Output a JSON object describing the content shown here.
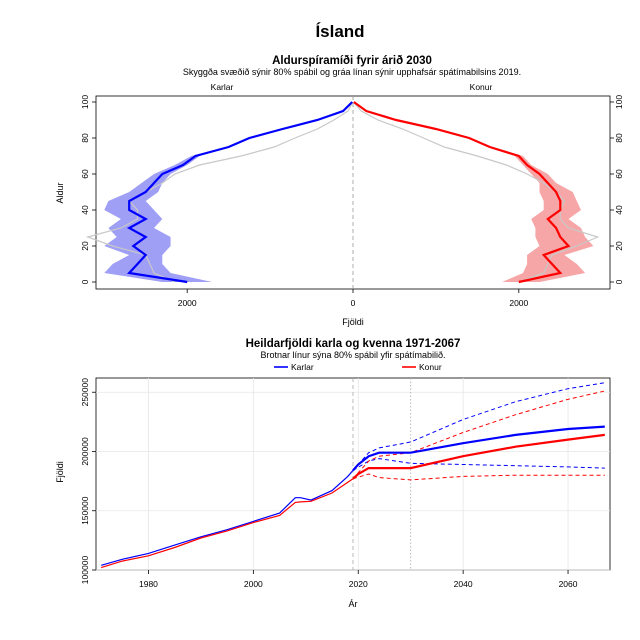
{
  "page_title": "Ísland",
  "colors": {
    "male": "#0000ff",
    "female": "#ff0000",
    "male_band": "#9f9ff6",
    "female_band": "#f6a6a6",
    "baseline": "#c8c8c8"
  },
  "chart_data": [
    {
      "type": "pyramid",
      "title": "Aldurspíramíði fyrir árið 2030",
      "subtitle": "Skyggða svæðið sýnir 80% spábil og gráa línan sýnir upphafsár spátímabilsins 2019.",
      "ylabel": "Aldur",
      "xlabel": "Fjöldi",
      "left_label": "Karlar",
      "right_label": "Konur",
      "ylim": [
        0,
        100
      ],
      "xlim": [
        -3100,
        3100
      ],
      "yticks": [
        "0",
        "20",
        "40",
        "60",
        "80",
        "100"
      ],
      "xticks": [
        "2000",
        "0",
        "2000"
      ],
      "ages": [
        0,
        5,
        10,
        15,
        20,
        25,
        30,
        35,
        40,
        45,
        50,
        55,
        60,
        65,
        70,
        75,
        80,
        85,
        90,
        95,
        100
      ],
      "series": [
        {
          "name": "Karlar",
          "values": [
            2000,
            2700,
            2600,
            2500,
            2650,
            2500,
            2700,
            2500,
            2700,
            2700,
            2500,
            2400,
            2300,
            2050,
            1900,
            1500,
            1250,
            850,
            430,
            120,
            10
          ],
          "lower": [
            1700,
            2200,
            2300,
            2300,
            2200,
            2200,
            2400,
            2300,
            2400,
            2500,
            2350,
            2300,
            2200,
            2000,
            1850,
            1480,
            1230,
            840,
            420,
            110,
            8
          ],
          "upper": [
            2300,
            3000,
            2900,
            2700,
            3000,
            2850,
            2950,
            2800,
            3000,
            2950,
            2700,
            2550,
            2400,
            2150,
            1950,
            1530,
            1280,
            870,
            440,
            130,
            12
          ]
        },
        {
          "name": "Konur",
          "values": [
            2000,
            2500,
            2400,
            2300,
            2600,
            2500,
            2450,
            2350,
            2500,
            2500,
            2450,
            2350,
            2250,
            2100,
            2000,
            1650,
            1400,
            1000,
            520,
            160,
            10
          ],
          "lower": [
            1800,
            2050,
            2100,
            2100,
            2250,
            2200,
            2200,
            2150,
            2300,
            2300,
            2250,
            2250,
            2150,
            2050,
            1950,
            1620,
            1380,
            980,
            510,
            150,
            8
          ],
          "upper": [
            2250,
            2800,
            2700,
            2550,
            2900,
            2800,
            2750,
            2600,
            2750,
            2700,
            2650,
            2450,
            2350,
            2150,
            2050,
            1680,
            1420,
            1020,
            530,
            170,
            12
          ]
        }
      ],
      "baseline_2019": {
        "male": [
          2150,
          2400,
          2450,
          2500,
          2900,
          3200,
          2800,
          2600,
          2600,
          2700,
          2500,
          2300,
          2150,
          1850,
          1350,
          950,
          700,
          430,
          230,
          60,
          5
        ],
        "female": [
          2000,
          2300,
          2350,
          2400,
          2700,
          2950,
          2600,
          2500,
          2500,
          2550,
          2450,
          2300,
          2100,
          1850,
          1500,
          1100,
          850,
          600,
          300,
          100,
          5
        ]
      }
    },
    {
      "type": "line",
      "title": "Heildarfjöldi karla og kvenna 1971-2067",
      "subtitle": "Brotnar línur sýna 80% spábil yfir spátímabilið.",
      "xlabel": "Ár",
      "ylabel": "Fjöldi",
      "xlim": [
        1970,
        2068
      ],
      "ylim": [
        100000,
        262000
      ],
      "xticks": [
        "1980",
        "2000",
        "2020",
        "2040",
        "2060"
      ],
      "yticks": [
        "100000",
        "150000",
        "200000",
        "250000"
      ],
      "legend": [
        "Karlar",
        "Konur"
      ],
      "legend_position": "top",
      "x": [
        1971,
        1975,
        1980,
        1985,
        1990,
        1995,
        2000,
        2005,
        2008,
        2009,
        2011,
        2015,
        2018,
        2019,
        2020,
        2022,
        2024,
        2030,
        2040,
        2050,
        2060,
        2067
      ],
      "series": [
        {
          "name": "Karlar",
          "values": [
            104000,
            109000,
            114000,
            121000,
            128000,
            134000,
            141000,
            148000,
            161000,
            161000,
            159000,
            167000,
            179000,
            184000,
            189000,
            196000,
            199000,
            199000,
            207000,
            214000,
            219000,
            221000
          ]
        },
        {
          "name": "Konur",
          "values": [
            102000,
            107500,
            112000,
            119000,
            127000,
            133000,
            140000,
            146000,
            157000,
            157500,
            158000,
            165000,
            174000,
            177000,
            181000,
            186000,
            186000,
            186000,
            196000,
            204000,
            210000,
            214000
          ]
        }
      ],
      "forecast_x": [
        2019,
        2022,
        2024,
        2030,
        2040,
        2050,
        2060,
        2067
      ],
      "forecast_bands": [
        {
          "name": "Karlar",
          "lower": [
            184000,
            192000,
            194000,
            190000,
            189000,
            188000,
            187000,
            186000
          ],
          "upper": [
            184000,
            199000,
            203000,
            208000,
            227000,
            242000,
            253000,
            258000
          ]
        },
        {
          "name": "Konur",
          "lower": [
            177000,
            181000,
            178000,
            176000,
            179000,
            180000,
            180000,
            180000
          ],
          "upper": [
            177000,
            192000,
            196000,
            199000,
            216000,
            231000,
            244000,
            251000
          ]
        }
      ],
      "vlines": [
        2019,
        2030
      ]
    }
  ]
}
